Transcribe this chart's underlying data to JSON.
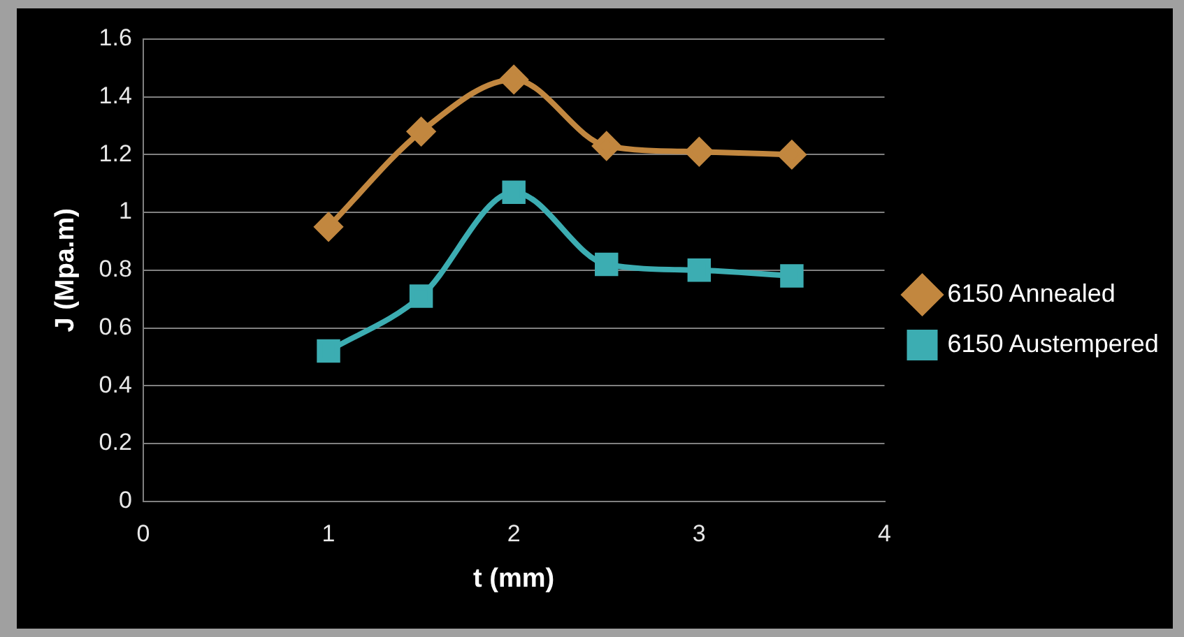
{
  "chart_data": {
    "type": "line",
    "xlabel": "t (mm)",
    "ylabel": "J (Mpa.m)",
    "xlim": [
      0,
      4
    ],
    "xticks": [
      0,
      1,
      2,
      3,
      4
    ],
    "ylim": [
      0,
      1.6
    ],
    "yticks": [
      0,
      0.2,
      0.4,
      0.6,
      0.8,
      1,
      1.2,
      1.4,
      1.6
    ],
    "grid": "y",
    "legend": "right",
    "series": [
      {
        "name": "6150 Annealed",
        "color": "#c2873f",
        "marker": "diamond",
        "x": [
          1,
          1.5,
          2,
          2.5,
          3,
          3.5
        ],
        "values": [
          0.95,
          1.28,
          1.46,
          1.23,
          1.21,
          1.2
        ]
      },
      {
        "name": "6150 Austempered",
        "color": "#3cadb2",
        "marker": "square",
        "x": [
          1,
          1.5,
          2,
          2.5,
          3,
          3.5
        ],
        "values": [
          0.52,
          0.71,
          1.07,
          0.82,
          0.8,
          0.78
        ]
      }
    ]
  }
}
